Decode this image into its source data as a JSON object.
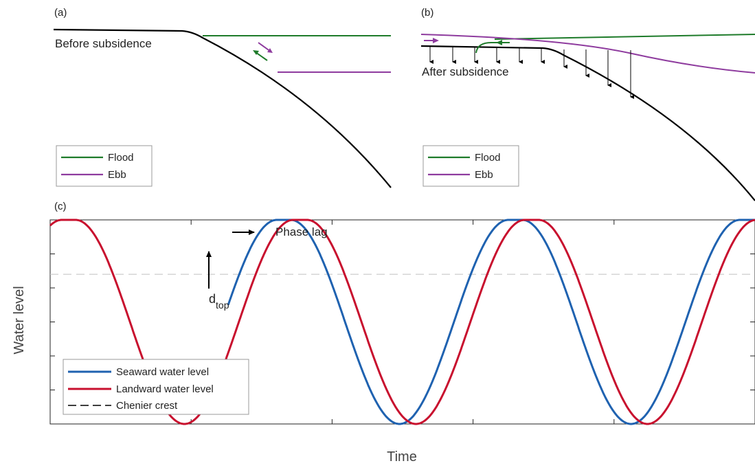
{
  "panels": {
    "a": {
      "label": "(a)",
      "annotation": "Before subsidence",
      "legend": [
        {
          "name": "Flood",
          "color": "#1e7b2a"
        },
        {
          "name": "Ebb",
          "color": "#8e3b9e"
        }
      ]
    },
    "b": {
      "label": "(b)",
      "annotation": "After subsidence",
      "legend": [
        {
          "name": "Flood",
          "color": "#1e7b2a"
        },
        {
          "name": "Ebb",
          "color": "#8e3b9e"
        }
      ]
    },
    "c": {
      "label": "(c)",
      "phase_lag_label": "Phase lag",
      "dtop_main": "d",
      "dtop_sub": "top",
      "xlabel": "Time",
      "ylabel": "Water level"
    }
  },
  "colors": {
    "flood": "#1e7b2a",
    "ebb": "#8e3b9e",
    "seaward": "#1f62b0",
    "landward": "#c8102e",
    "crest": "#555555",
    "ground": "#000000"
  },
  "chart_data": [
    {
      "type": "line",
      "title": "",
      "xlabel": "Time",
      "ylabel": "Water level",
      "grid": false,
      "legend_position": "bottom-left",
      "series": [
        {
          "name": "Seaward water level",
          "color": "#1f62b0",
          "style": "solid",
          "description": "sinusoid clipped at top (flat crest); period ~338 time units"
        },
        {
          "name": "Landward water level",
          "color": "#c8102e",
          "style": "solid",
          "description": "same as seaward, lagged by ~24 time units"
        },
        {
          "name": "Chenier crest",
          "color": "#555555",
          "style": "dashed",
          "description": "horizontal line at y = 0.2"
        }
      ],
      "xlim": [
        0,
        1029
      ],
      "ylim": [
        -2.0,
        1.0
      ],
      "params": {
        "period": 338,
        "peak_times": [
          341,
          679,
          1017
        ],
        "flat_half_width": 10,
        "amplitude": 1.0,
        "lag": 24,
        "chenier_crest": 0.2
      }
    },
    {
      "type": "line",
      "panel": "a",
      "series": [
        {
          "name": "Flood",
          "color": "#1e7b2a"
        },
        {
          "name": "Ebb",
          "color": "#8e3b9e"
        }
      ]
    },
    {
      "type": "line",
      "panel": "b",
      "series": [
        {
          "name": "Flood",
          "color": "#1e7b2a"
        },
        {
          "name": "Ebb",
          "color": "#8e3b9e"
        }
      ]
    }
  ]
}
